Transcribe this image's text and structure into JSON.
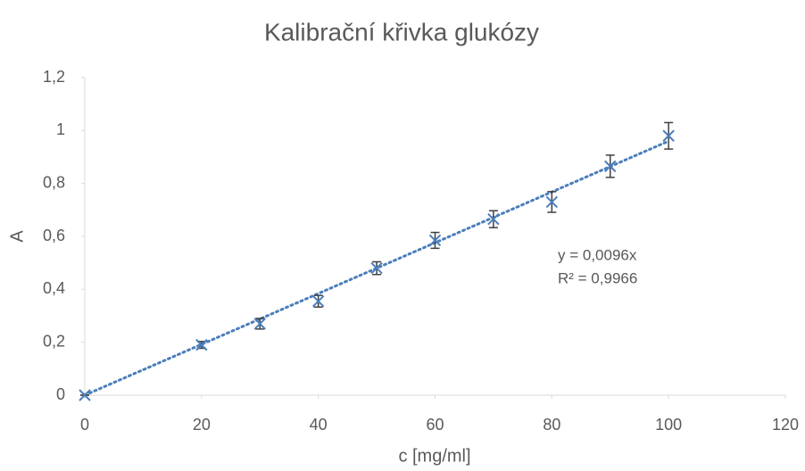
{
  "chart_data": {
    "type": "scatter",
    "title": "Kalibrační křivka glukózy",
    "x_label": "c [mg/ml]",
    "y_label": "A",
    "x": [
      0,
      20,
      30,
      40,
      50,
      60,
      70,
      80,
      90,
      100
    ],
    "series": [
      {
        "name": "A",
        "color": "#4a7ebb",
        "error_color": "#404040",
        "values": [
          0,
          0.19,
          0.27,
          0.355,
          0.48,
          0.585,
          0.665,
          0.73,
          0.865,
          0.98
        ],
        "errors": [
          0,
          0.013,
          0.02,
          0.022,
          0.024,
          0.03,
          0.032,
          0.039,
          0.042,
          0.05
        ]
      }
    ],
    "trendline": {
      "slope": 0.0096,
      "equation": "y = 0,0096x",
      "r_squared": "R² = 0,9966"
    },
    "xlim": [
      0,
      120
    ],
    "xticks": [
      0,
      20,
      40,
      60,
      80,
      100,
      120
    ],
    "ylim": [
      0,
      1.2
    ],
    "yticks": [
      0,
      {
        "value": 0.2,
        "label": "0,2"
      },
      {
        "value": 0.4,
        "label": "0,4"
      },
      {
        "value": 0.6,
        "label": "0,6"
      },
      {
        "value": 0.8,
        "label": "0,8"
      },
      1,
      {
        "value": 1.2,
        "label": "1,2"
      }
    ],
    "grid": false
  }
}
